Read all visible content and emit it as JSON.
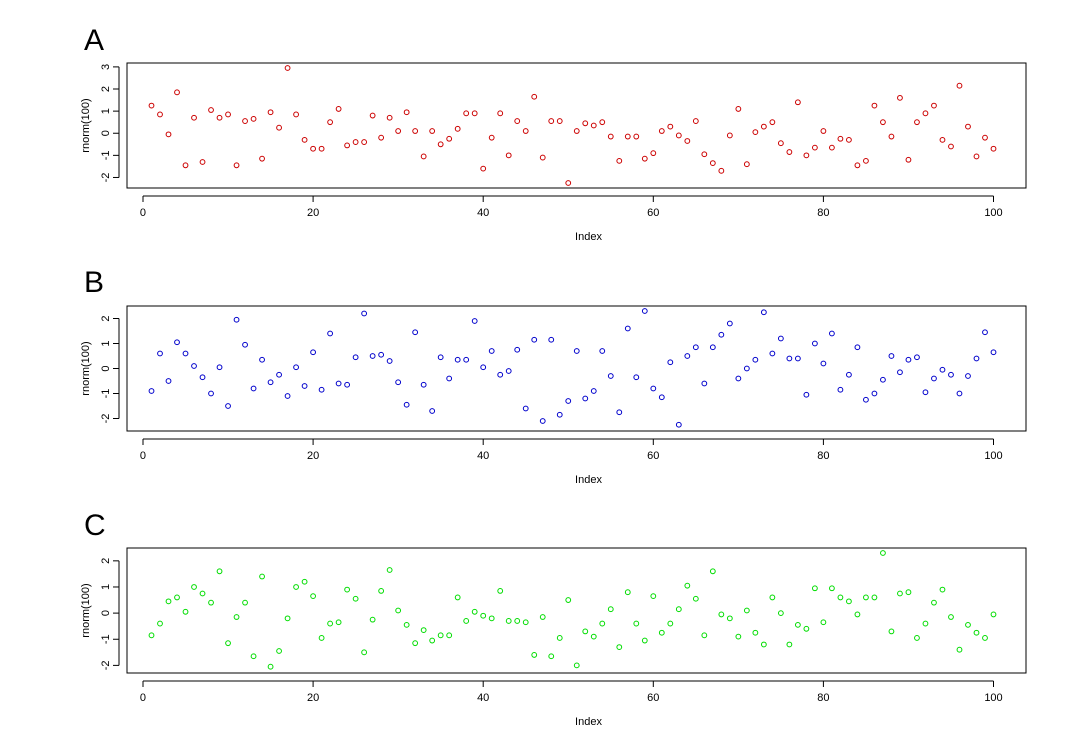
{
  "panels": [
    {
      "letter": "A",
      "color": "#cc0000"
    },
    {
      "letter": "B",
      "color": "#0000cc"
    },
    {
      "letter": "C",
      "color": "#00dd00"
    }
  ],
  "chart_data": [
    {
      "type": "scatter",
      "xlabel": "Index",
      "ylabel": "rnorm(100)",
      "xlim": [
        1,
        100
      ],
      "ylim": [
        -2.25,
        2.95
      ],
      "xticks": [
        0,
        20,
        40,
        60,
        80,
        100
      ],
      "yticks": [
        -2,
        -1,
        0,
        1,
        2,
        3
      ],
      "x": [
        1,
        2,
        3,
        4,
        5,
        6,
        7,
        8,
        9,
        10,
        11,
        12,
        13,
        14,
        15,
        16,
        17,
        18,
        19,
        20,
        21,
        22,
        23,
        24,
        25,
        26,
        27,
        28,
        29,
        30,
        31,
        32,
        33,
        34,
        35,
        36,
        37,
        38,
        39,
        40,
        41,
        42,
        43,
        44,
        45,
        46,
        47,
        48,
        49,
        50,
        51,
        52,
        53,
        54,
        55,
        56,
        57,
        58,
        59,
        60,
        61,
        62,
        63,
        64,
        65,
        66,
        67,
        68,
        69,
        70,
        71,
        72,
        73,
        74,
        75,
        76,
        77,
        78,
        79,
        80,
        81,
        82,
        83,
        84,
        85,
        86,
        87,
        88,
        89,
        90,
        91,
        92,
        93,
        94,
        95,
        96,
        97,
        98,
        99,
        100
      ],
      "y": [
        1.25,
        0.85,
        -0.05,
        1.85,
        -1.45,
        0.7,
        -1.3,
        1.05,
        0.7,
        0.85,
        -1.45,
        0.55,
        0.65,
        -1.15,
        0.95,
        0.25,
        2.95,
        0.85,
        -0.3,
        -0.7,
        -0.7,
        0.5,
        1.1,
        -0.55,
        -0.4,
        -0.4,
        0.8,
        -0.2,
        0.7,
        0.1,
        0.95,
        0.1,
        -1.05,
        0.1,
        -0.5,
        -0.25,
        0.2,
        0.9,
        0.9,
        -1.6,
        -0.2,
        0.9,
        -1.0,
        0.55,
        0.1,
        1.65,
        -1.1,
        0.55,
        0.55,
        -2.25,
        0.1,
        0.45,
        0.35,
        0.5,
        -0.15,
        -1.25,
        -0.15,
        -0.15,
        -1.15,
        -0.9,
        0.1,
        0.3,
        -0.1,
        -0.35,
        0.55,
        -0.95,
        -1.35,
        -1.7,
        -0.1,
        1.1,
        -1.4,
        0.05,
        0.3,
        0.5,
        -0.45,
        -0.85,
        1.4,
        -1.0,
        -0.65,
        0.1,
        -0.65,
        -0.25,
        -0.3,
        -1.45,
        -1.25,
        1.25,
        0.5,
        -0.15,
        1.6,
        -1.2,
        0.5,
        0.9,
        1.25,
        -0.3,
        -0.6,
        2.15,
        0.3,
        -1.05,
        -0.2,
        -0.7
      ]
    },
    {
      "type": "scatter",
      "xlabel": "Index",
      "ylabel": "rnorm(100)",
      "xlim": [
        1,
        100
      ],
      "ylim": [
        -2.3,
        2.3
      ],
      "xticks": [
        0,
        20,
        40,
        60,
        80,
        100
      ],
      "yticks": [
        -2,
        -1,
        0,
        1,
        2
      ],
      "x": [
        1,
        2,
        3,
        4,
        5,
        6,
        7,
        8,
        9,
        10,
        11,
        12,
        13,
        14,
        15,
        16,
        17,
        18,
        19,
        20,
        21,
        22,
        23,
        24,
        25,
        26,
        27,
        28,
        29,
        30,
        31,
        32,
        33,
        34,
        35,
        36,
        37,
        38,
        39,
        40,
        41,
        42,
        43,
        44,
        45,
        46,
        47,
        48,
        49,
        50,
        51,
        52,
        53,
        54,
        55,
        56,
        57,
        58,
        59,
        60,
        61,
        62,
        63,
        64,
        65,
        66,
        67,
        68,
        69,
        70,
        71,
        72,
        73,
        74,
        75,
        76,
        77,
        78,
        79,
        80,
        81,
        82,
        83,
        84,
        85,
        86,
        87,
        88,
        89,
        90,
        91,
        92,
        93,
        94,
        95,
        96,
        97,
        98,
        99,
        100
      ],
      "y": [
        -0.9,
        0.6,
        -0.5,
        1.05,
        0.6,
        0.1,
        -0.35,
        -1.0,
        0.05,
        -1.5,
        1.95,
        0.95,
        -0.8,
        0.35,
        -0.55,
        -0.25,
        -1.1,
        0.05,
        -0.7,
        0.65,
        -0.85,
        1.4,
        -0.6,
        -0.65,
        0.45,
        2.2,
        0.5,
        0.55,
        0.3,
        -0.55,
        -1.45,
        1.45,
        -0.65,
        -1.7,
        0.45,
        -0.4,
        0.35,
        0.35,
        1.9,
        0.05,
        0.7,
        -0.25,
        -0.1,
        0.75,
        -1.6,
        1.15,
        -2.1,
        1.15,
        -1.85,
        -1.3,
        0.7,
        -1.2,
        -0.9,
        0.7,
        -0.3,
        -1.75,
        1.6,
        -0.35,
        2.3,
        -0.8,
        -1.15,
        0.25,
        -2.25,
        0.5,
        0.85,
        -0.6,
        0.85,
        1.35,
        1.8,
        -0.4,
        0.0,
        0.35,
        2.25,
        0.6,
        1.2,
        0.4,
        0.4,
        -1.05,
        1.0,
        0.2,
        1.4,
        -0.85,
        -0.25,
        0.85,
        -1.25,
        -1.0,
        -0.45,
        0.5,
        -0.15,
        0.35,
        0.45,
        -0.95,
        -0.4,
        -0.05,
        -0.25,
        -1.0,
        -0.3,
        0.4,
        1.45,
        0.65
      ]
    },
    {
      "type": "scatter",
      "xlabel": "Index",
      "ylabel": "rnorm(100)",
      "xlim": [
        1,
        100
      ],
      "ylim": [
        -2.1,
        2.3
      ],
      "xticks": [
        0,
        20,
        40,
        60,
        80,
        100
      ],
      "yticks": [
        -2,
        -1,
        0,
        1,
        2
      ],
      "x": [
        1,
        2,
        3,
        4,
        5,
        6,
        7,
        8,
        9,
        10,
        11,
        12,
        13,
        14,
        15,
        16,
        17,
        18,
        19,
        20,
        21,
        22,
        23,
        24,
        25,
        26,
        27,
        28,
        29,
        30,
        31,
        32,
        33,
        34,
        35,
        36,
        37,
        38,
        39,
        40,
        41,
        42,
        43,
        44,
        45,
        46,
        47,
        48,
        49,
        50,
        51,
        52,
        53,
        54,
        55,
        56,
        57,
        58,
        59,
        60,
        61,
        62,
        63,
        64,
        65,
        66,
        67,
        68,
        69,
        70,
        71,
        72,
        73,
        74,
        75,
        76,
        77,
        78,
        79,
        80,
        81,
        82,
        83,
        84,
        85,
        86,
        87,
        88,
        89,
        90,
        91,
        92,
        93,
        94,
        95,
        96,
        97,
        98,
        99,
        100
      ],
      "y": [
        -0.85,
        -0.4,
        0.45,
        0.6,
        0.05,
        1.0,
        0.75,
        0.4,
        1.6,
        -1.15,
        -0.15,
        0.4,
        -1.65,
        1.4,
        -2.05,
        -1.45,
        -0.2,
        1.0,
        1.2,
        0.65,
        -0.95,
        -0.4,
        -0.35,
        0.9,
        0.55,
        -1.5,
        -0.25,
        0.85,
        1.65,
        0.1,
        -0.45,
        -1.15,
        -0.65,
        -1.05,
        -0.85,
        -0.85,
        0.6,
        -0.3,
        0.05,
        -0.1,
        -0.2,
        0.85,
        -0.3,
        -0.3,
        -0.35,
        -1.6,
        -0.15,
        -1.65,
        -0.95,
        0.5,
        -2.0,
        -0.7,
        -0.9,
        -0.4,
        0.15,
        -1.3,
        0.8,
        -0.4,
        -1.05,
        0.65,
        -0.75,
        -0.4,
        0.15,
        1.05,
        0.55,
        -0.85,
        1.6,
        -0.05,
        -0.2,
        -0.9,
        0.1,
        -0.75,
        -1.2,
        0.6,
        0.0,
        -1.2,
        -0.45,
        -0.6,
        0.95,
        -0.35,
        0.95,
        0.6,
        0.45,
        -0.05,
        0.6,
        0.6,
        2.3,
        -0.7,
        0.75,
        0.8,
        -0.95,
        -0.4,
        0.4,
        0.9,
        -0.15,
        -1.4,
        -0.45,
        -0.75,
        -0.95,
        -0.05
      ]
    }
  ]
}
